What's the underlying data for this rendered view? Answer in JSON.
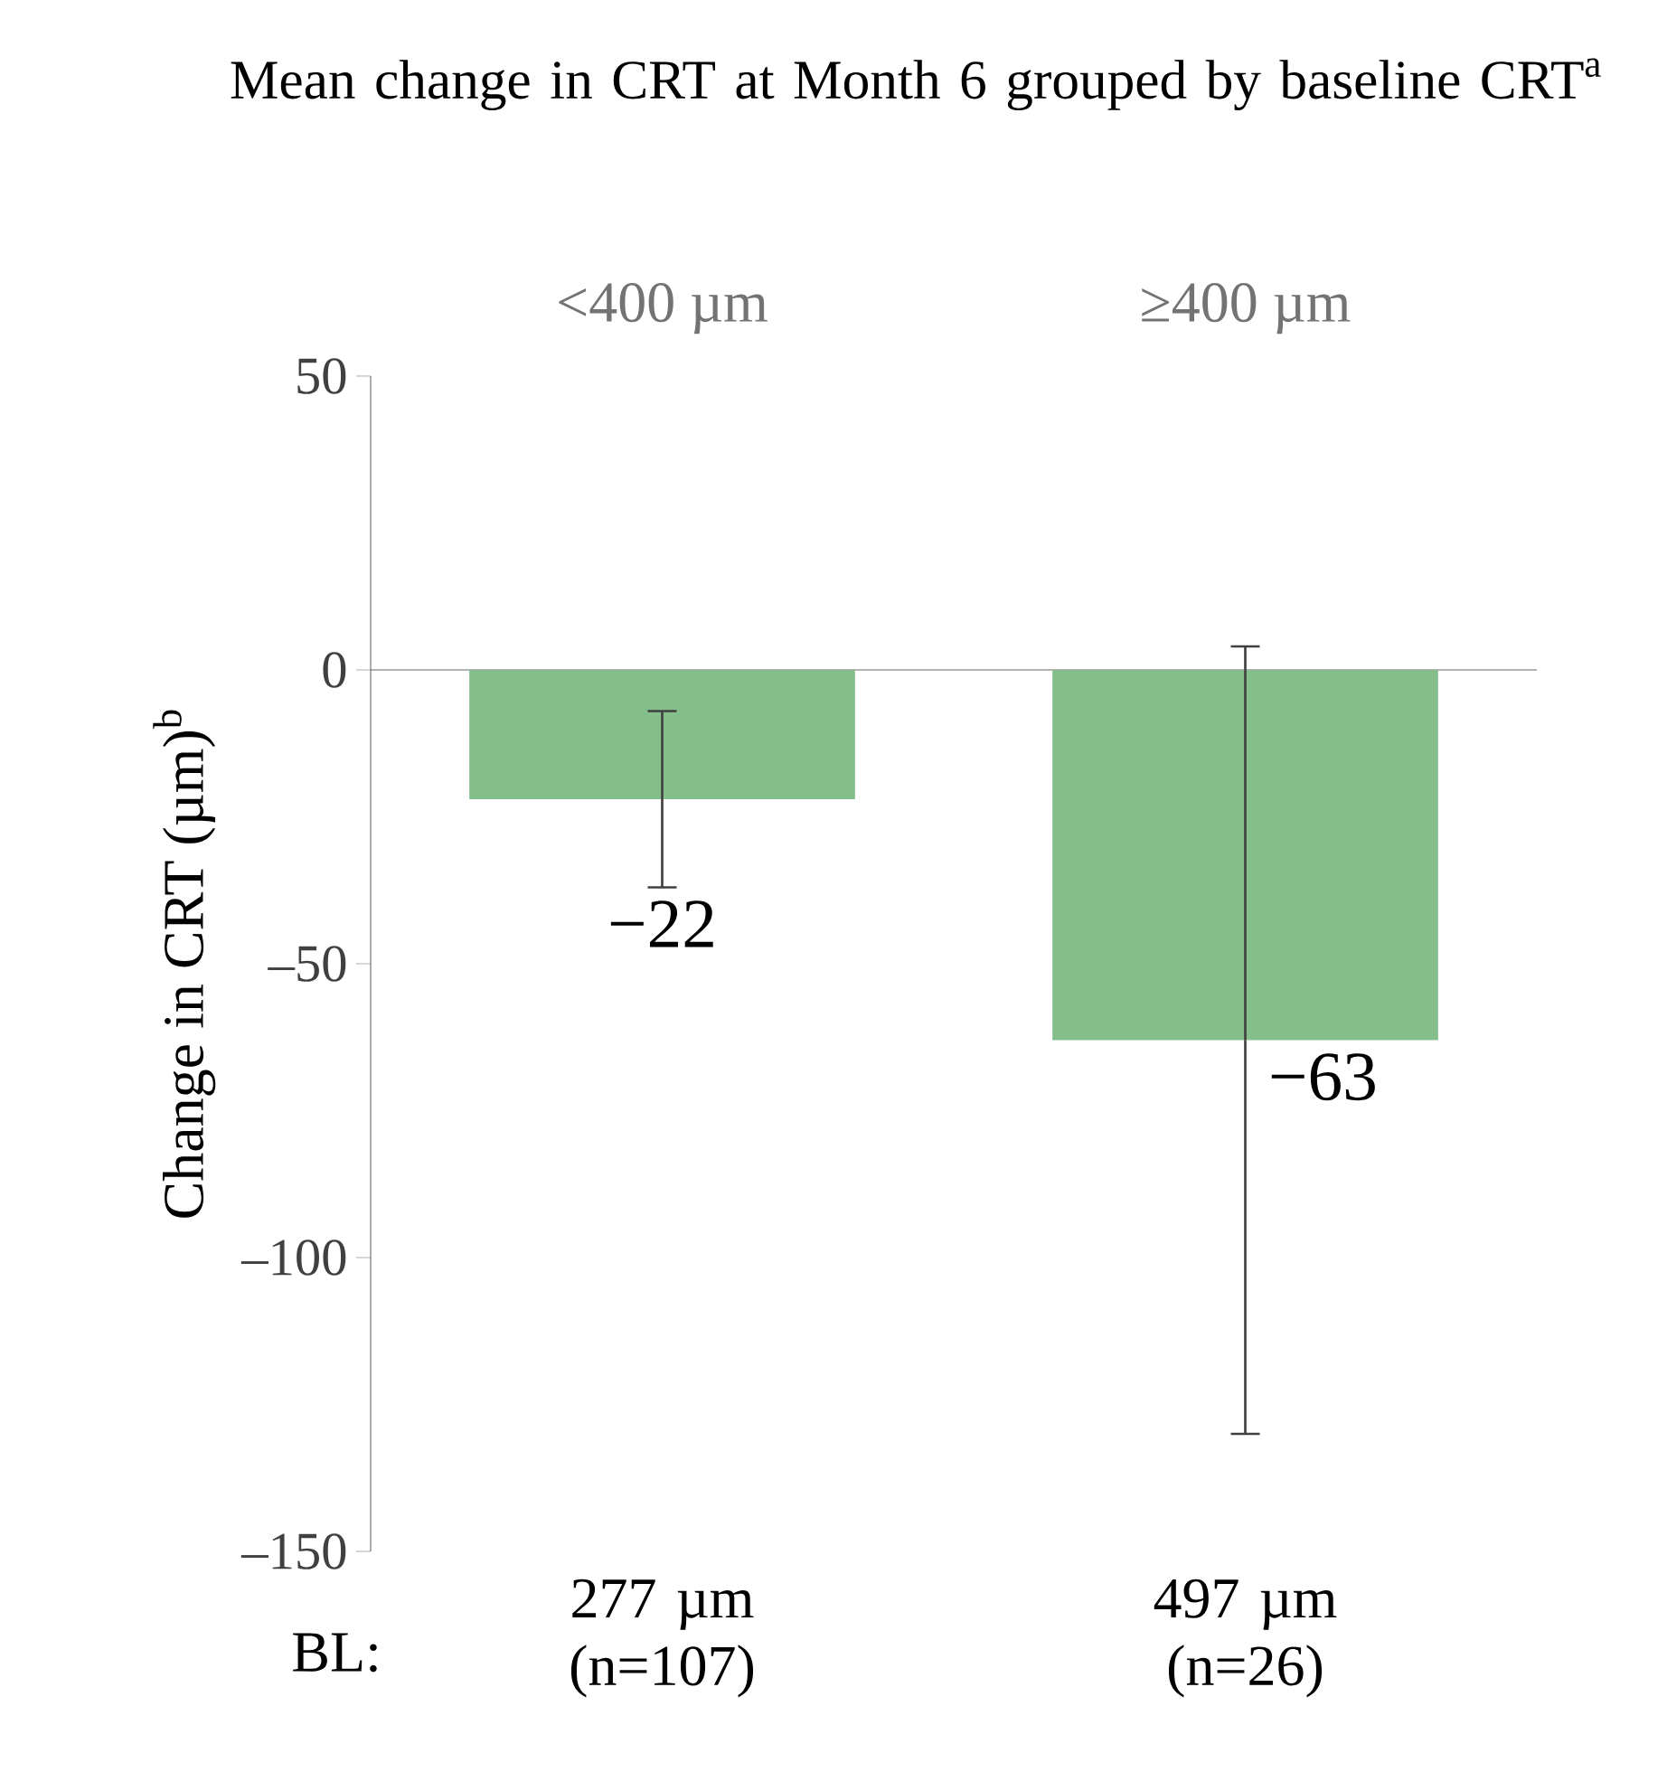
{
  "chart_data": {
    "type": "bar",
    "title": "Mean change in CRT at Month 6 grouped by baseline CRT$^{a}$",
    "ylabel": "Change in CRT (µm)$^{b}$",
    "categories": [
      "<400 µm",
      "≥400 µm"
    ],
    "values": [
      -22,
      -63
    ],
    "errors": [
      15,
      67
    ],
    "value_labels": [
      "−22",
      "−63"
    ],
    "color": "#84bf8b",
    "ylim": [
      -150,
      50
    ],
    "yticks": [
      50,
      0,
      {
        "value": -50,
        "label": "–50"
      },
      {
        "value": -100,
        "label": "–100"
      },
      {
        "value": -150,
        "label": "–150"
      }
    ],
    "annotations": [
      "BL:",
      "277 µm (n=107)",
      "497 µm (n=26)"
    ]
  }
}
